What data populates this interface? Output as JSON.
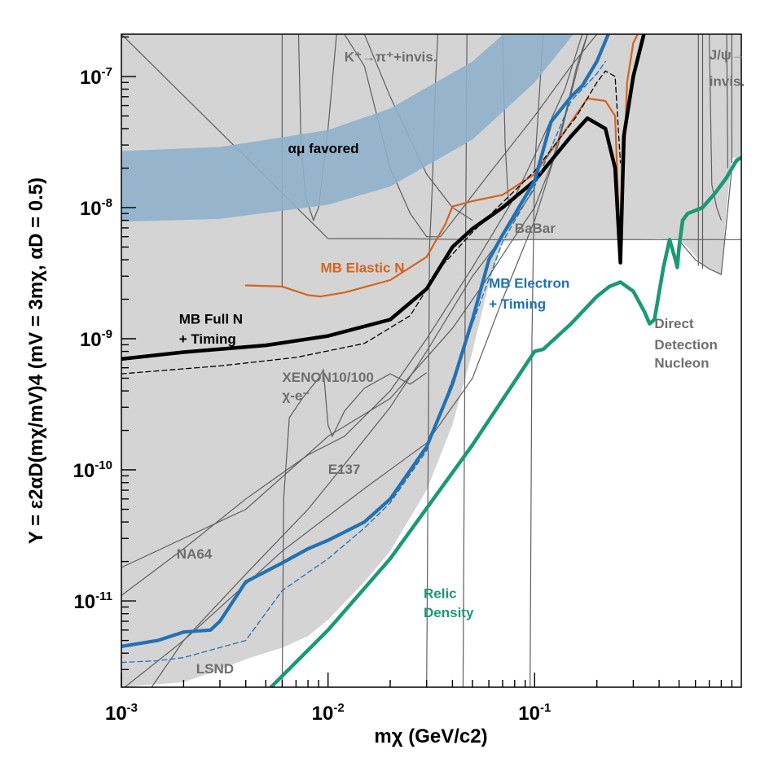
{
  "chart_data": {
    "type": "line",
    "xscale": "log",
    "yscale": "log",
    "xlim": [
      0.001,
      1.0
    ],
    "ylim": [
      2.2e-12,
      2.1e-07
    ],
    "x_major_ticks": [
      0.001,
      0.01,
      0.1
    ],
    "x_tick_labels": [
      {
        "base": "10",
        "exp": "-3"
      },
      {
        "base": "10",
        "exp": "-2"
      },
      {
        "base": "10",
        "exp": "-1"
      }
    ],
    "y_major_ticks": [
      1e-11,
      1e-10,
      1e-09,
      1e-08,
      1e-07
    ],
    "y_tick_labels": [
      {
        "base": "10",
        "exp": "-11"
      },
      {
        "base": "10",
        "exp": "-10"
      },
      {
        "base": "10",
        "exp": "-9"
      },
      {
        "base": "10",
        "exp": "-8"
      },
      {
        "base": "10",
        "exp": "-7"
      }
    ],
    "xlabel": "mχ (GeV/c2)",
    "ylabel": "Y = ε2αD(mχ/mV)4 (mV = 3mχ, αD = 0.5)",
    "colors": {
      "excluded": "#d4d4d4",
      "boundary": "#5f5f5f",
      "favored_band": "#8fb1cc",
      "elastic": "#d4641e",
      "full_n": "#000000",
      "electron": "#2171b5",
      "relic": "#1a9a73",
      "region_text": "#6f6f6f"
    },
    "favored_band": {
      "label": "αμ favored",
      "lower": [
        [
          0.001,
          7.8e-09
        ],
        [
          0.003,
          8.2e-09
        ],
        [
          0.01,
          1.05e-08
        ],
        [
          0.02,
          1.45e-08
        ],
        [
          0.05,
          3.3e-08
        ],
        [
          0.1,
          9e-08
        ],
        [
          0.2,
          3.5e-07
        ]
      ],
      "upper": [
        [
          0.001,
          2.7e-08
        ],
        [
          0.003,
          2.9e-08
        ],
        [
          0.01,
          3.9e-08
        ],
        [
          0.02,
          5.7e-08
        ],
        [
          0.05,
          1.3e-07
        ],
        [
          0.1,
          3.4e-07
        ]
      ]
    },
    "series": [
      {
        "name": "MB Elastic N",
        "style": "solid",
        "points": [
          [
            0.004,
            2.55e-09
          ],
          [
            0.006,
            2.5e-09
          ],
          [
            0.008,
            2.15e-09
          ],
          [
            0.0092,
            2.1e-09
          ],
          [
            0.012,
            2.25e-09
          ],
          [
            0.02,
            2.8e-09
          ],
          [
            0.03,
            4.2e-09
          ],
          [
            0.037,
            7.5e-09
          ],
          [
            0.04,
            1.02e-08
          ],
          [
            0.05,
            1.12e-08
          ],
          [
            0.07,
            1.25e-08
          ],
          [
            0.1,
            1.8e-08
          ],
          [
            0.12,
            2.7e-08
          ],
          [
            0.18,
            6.8e-08
          ],
          [
            0.22,
            6.5e-08
          ],
          [
            0.245,
            5e-08
          ],
          [
            0.26,
            3.9e-09
          ],
          [
            0.28,
            9e-08
          ],
          [
            0.3,
            1.8e-07
          ],
          [
            0.32,
            2.2e-07
          ]
        ]
      },
      {
        "name": "MB Full N + Timing",
        "style": "solid",
        "points": [
          [
            0.001,
            7e-10
          ],
          [
            0.002,
            7.9e-10
          ],
          [
            0.005,
            8.9e-10
          ],
          [
            0.01,
            1.05e-09
          ],
          [
            0.02,
            1.4e-09
          ],
          [
            0.03,
            2.4e-09
          ],
          [
            0.04,
            5e-09
          ],
          [
            0.05,
            6.9e-09
          ],
          [
            0.07,
            1e-08
          ],
          [
            0.1,
            1.6e-08
          ],
          [
            0.15,
            3.5e-08
          ],
          [
            0.18,
            4.8e-08
          ],
          [
            0.22,
            4e-08
          ],
          [
            0.245,
            2e-08
          ],
          [
            0.26,
            3.8e-09
          ],
          [
            0.27,
            3.5e-08
          ],
          [
            0.3,
            1e-07
          ],
          [
            0.34,
            2.2e-07
          ]
        ]
      },
      {
        "name": "Full N (dashed)",
        "style": "dashed",
        "points": [
          [
            0.001,
            5.4e-10
          ],
          [
            0.003,
            6.2e-10
          ],
          [
            0.007,
            7.2e-10
          ],
          [
            0.015,
            9.2e-10
          ],
          [
            0.025,
            1.5e-09
          ],
          [
            0.035,
            3.5e-09
          ],
          [
            0.05,
            6.5e-09
          ],
          [
            0.1,
            1.9e-08
          ],
          [
            0.16,
            5e-08
          ],
          [
            0.2,
            9e-08
          ],
          [
            0.22,
            1.1e-07
          ],
          [
            0.245,
            1e-07
          ],
          [
            0.26,
            2.2e-08
          ]
        ]
      },
      {
        "name": "MB Electron + Timing",
        "style": "solid",
        "points": [
          [
            0.001,
            4.5e-12
          ],
          [
            0.0015,
            5e-12
          ],
          [
            0.002,
            5.8e-12
          ],
          [
            0.0027,
            6e-12
          ],
          [
            0.003,
            7e-12
          ],
          [
            0.004,
            1.4e-11
          ],
          [
            0.006,
            1.95e-11
          ],
          [
            0.008,
            2.5e-11
          ],
          [
            0.01,
            2.9e-11
          ],
          [
            0.015,
            4e-11
          ],
          [
            0.02,
            6e-11
          ],
          [
            0.03,
            1.5e-10
          ],
          [
            0.04,
            4.5e-10
          ],
          [
            0.05,
            1.4e-09
          ],
          [
            0.06,
            4e-09
          ],
          [
            0.07,
            6.2e-09
          ],
          [
            0.1,
            1.6e-08
          ],
          [
            0.12,
            4.5e-08
          ],
          [
            0.15,
            7e-08
          ],
          [
            0.17,
            8.5e-08
          ],
          [
            0.2,
            1.3e-07
          ],
          [
            0.23,
            2.2e-07
          ]
        ]
      },
      {
        "name": "Electron (dashed)",
        "style": "dashed",
        "points": [
          [
            0.001,
            3.4e-12
          ],
          [
            0.0015,
            3.5e-12
          ],
          [
            0.002,
            3.7e-12
          ],
          [
            0.004,
            5e-12
          ],
          [
            0.006,
            1.2e-11
          ],
          [
            0.01,
            2.1e-11
          ],
          [
            0.015,
            3.6e-11
          ],
          [
            0.02,
            5.6e-11
          ],
          [
            0.03,
            1.4e-10
          ],
          [
            0.05,
            1.3e-09
          ],
          [
            0.07,
            5.5e-09
          ],
          [
            0.1,
            1.45e-08
          ],
          [
            0.15,
            6.5e-08
          ],
          [
            0.2,
            1.05e-07
          ],
          [
            0.22,
            1.3e-07
          ]
        ]
      },
      {
        "name": "Relic Density",
        "style": "solid",
        "points": [
          [
            0.0053,
            2.2e-12
          ],
          [
            0.01,
            6e-12
          ],
          [
            0.02,
            2.1e-11
          ],
          [
            0.05,
            1.55e-10
          ],
          [
            0.1,
            8e-10
          ],
          [
            0.11,
            8.3e-10
          ],
          [
            0.15,
            1.3e-09
          ],
          [
            0.2,
            2.1e-09
          ],
          [
            0.23,
            2.5e-09
          ],
          [
            0.26,
            2.7e-09
          ],
          [
            0.3,
            2.3e-09
          ],
          [
            0.34,
            1.6e-09
          ],
          [
            0.36,
            1.3e-09
          ],
          [
            0.38,
            1.4e-09
          ],
          [
            0.42,
            3.5e-09
          ],
          [
            0.45,
            5.7e-09
          ],
          [
            0.48,
            4e-09
          ],
          [
            0.49,
            3.5e-09
          ],
          [
            0.5,
            5e-09
          ],
          [
            0.52,
            8e-09
          ],
          [
            0.55,
            9e-09
          ],
          [
            0.65,
            1e-08
          ],
          [
            0.75,
            1.3e-08
          ],
          [
            0.85,
            1.7e-08
          ],
          [
            0.95,
            2.3e-08
          ],
          [
            1.0,
            2.4e-08
          ]
        ]
      }
    ],
    "labels": [
      {
        "key": "kpi",
        "text": "K⁺→π⁺+invis.",
        "x": 0.012,
        "y": 1.3e-07
      },
      {
        "key": "jpsi1",
        "text": "J/ψ→",
        "x": 0.7,
        "y": 1.35e-07
      },
      {
        "key": "jpsi2",
        "text": "invis.",
        "x": 0.7,
        "y": 8.5e-08
      },
      {
        "key": "amu",
        "text": "αμ favored",
        "x": 0.0064,
        "y": 2.6e-08
      },
      {
        "key": "babar",
        "text": "BaBar",
        "x": 0.08,
        "y": 6.4e-09
      },
      {
        "key": "elastic",
        "text": "MB Elastic N",
        "x": 0.0092,
        "y": 3.2e-09
      },
      {
        "key": "electron1",
        "text": "MB Electron",
        "x": 0.06,
        "y": 2.45e-09
      },
      {
        "key": "electron2",
        "text": "+ Timing",
        "x": 0.06,
        "y": 1.7e-09
      },
      {
        "key": "fulln1",
        "text": "MB Full N",
        "x": 0.0019,
        "y": 1.3e-09
      },
      {
        "key": "fulln2",
        "text": "+ Timing",
        "x": 0.0019,
        "y": 9.2e-10
      },
      {
        "key": "dd1",
        "text": "Direct",
        "x": 0.38,
        "y": 1.2e-09
      },
      {
        "key": "dd2",
        "text": "Detection",
        "x": 0.38,
        "y": 8.3e-10
      },
      {
        "key": "dd3",
        "text": "Nucleon",
        "x": 0.38,
        "y": 6e-10
      },
      {
        "key": "xenon1",
        "text": "XENON10/100",
        "x": 0.006,
        "y": 4.7e-10
      },
      {
        "key": "xenon2",
        "text": "χ-e⁻",
        "x": 0.006,
        "y": 3.4e-10
      },
      {
        "key": "e137",
        "text": "E137",
        "x": 0.01,
        "y": 9.3e-11
      },
      {
        "key": "na64",
        "text": "NA64",
        "x": 0.00185,
        "y": 2.1e-11
      },
      {
        "key": "relic1",
        "text": "Relic",
        "x": 0.029,
        "y": 1.05e-11
      },
      {
        "key": "relic2",
        "text": "Density",
        "x": 0.029,
        "y": 7.5e-12
      },
      {
        "key": "lsnd",
        "text": "LSND",
        "x": 0.0023,
        "y": 2.8e-12
      }
    ]
  }
}
